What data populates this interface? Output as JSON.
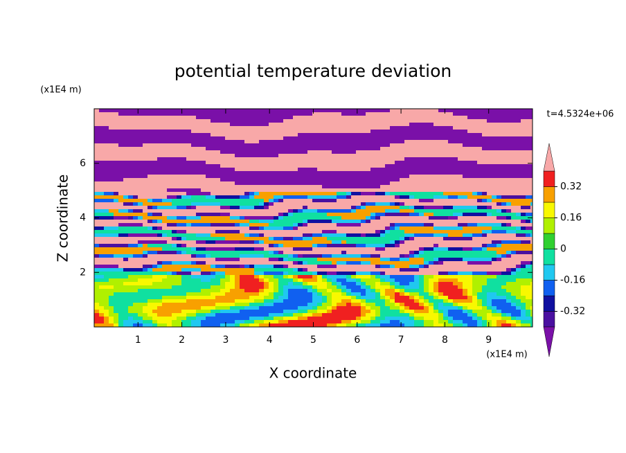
{
  "chart_data": {
    "type": "contour",
    "title": "potential temperature deviation",
    "xlabel": "X coordinate",
    "ylabel": "Z coordinate",
    "x_unit": "(x1E4 m)",
    "y_unit": "(x1E4 m)",
    "time_label": "t=4.5324e+06",
    "xlim": [
      0,
      10
    ],
    "xticks": [
      1,
      2,
      3,
      4,
      5,
      6,
      7,
      8,
      9
    ],
    "ylim": [
      0,
      8
    ],
    "yticks": [
      2,
      4,
      6
    ],
    "levels": [
      -0.4,
      -0.32,
      -0.24,
      -0.16,
      -0.08,
      0,
      0.08,
      0.16,
      0.24,
      0.32,
      0.4
    ],
    "colors": [
      "#7a10a8",
      "#4a10a0",
      "#1010a0",
      "#1060f0",
      "#20c8f0",
      "#10e0a0",
      "#30d030",
      "#b0f000",
      "#f8f800",
      "#f8a000",
      "#f02020",
      "#f8a8a8"
    ],
    "colorbar_ticks": [
      -0.32,
      -0.16,
      0,
      0.16,
      0.32
    ]
  }
}
